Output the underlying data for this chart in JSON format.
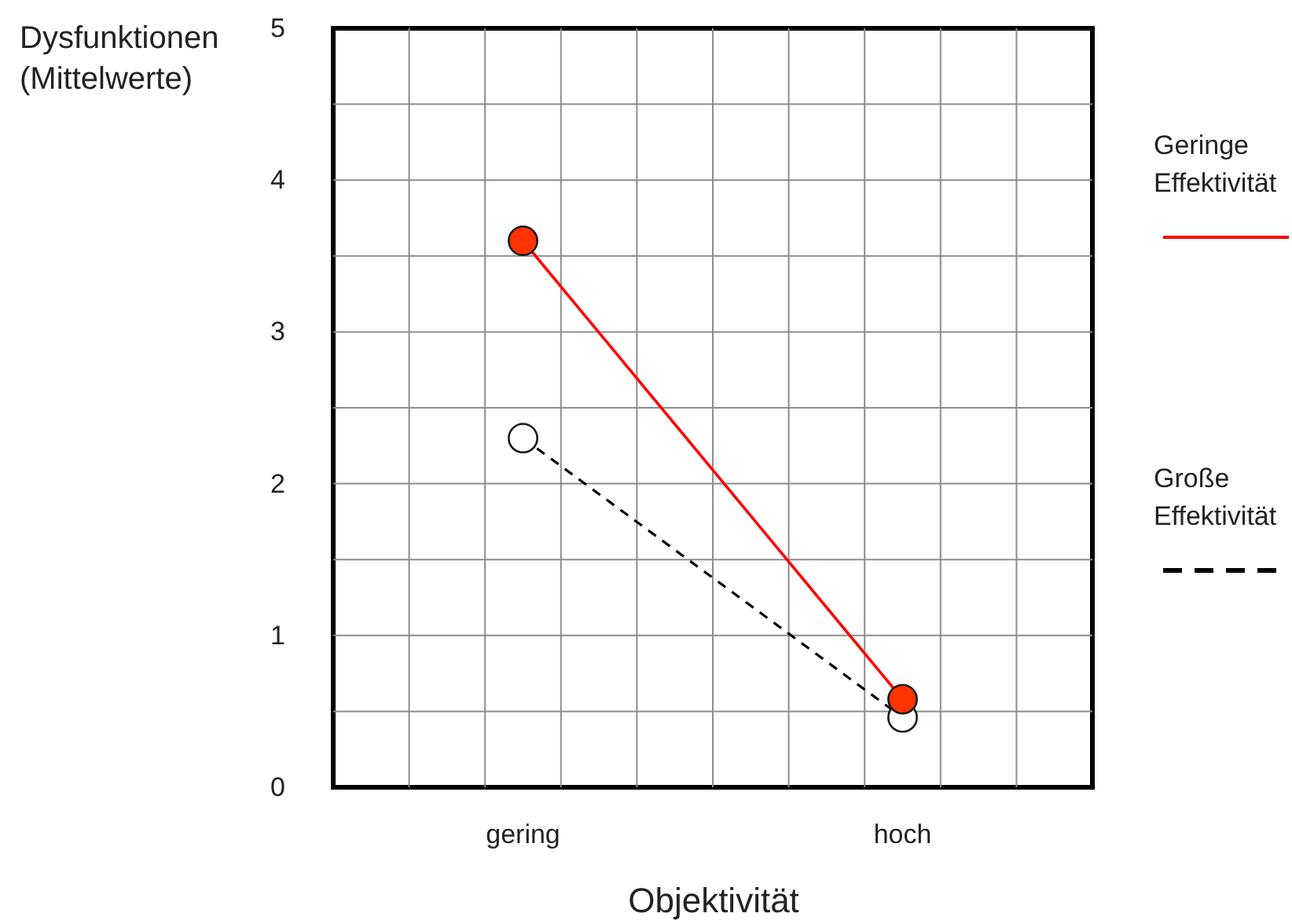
{
  "chart_data": {
    "type": "line",
    "xlabel": "Objektivität",
    "ylabel": "Dysfunktionen (Mittelwerte)",
    "categories": [
      null,
      null,
      "gering",
      null,
      null,
      null,
      null,
      "hoch",
      null,
      null
    ],
    "ylim": [
      0,
      5
    ],
    "yticks": [
      0,
      {
        "value": 0.5,
        "label": null
      },
      1,
      {
        "value": 1.5,
        "label": null
      },
      2,
      {
        "value": 2.5,
        "label": null
      },
      3,
      {
        "value": 3.5,
        "label": null
      },
      4,
      {
        "value": 4.5,
        "label": null
      },
      5
    ],
    "grid": true,
    "legend": "right",
    "marker": "circle",
    "series": [
      {
        "name": "Geringe Effektivität",
        "color": "#ff0000",
        "colors": [
          "#ff3300",
          "#ff3300"
        ],
        "line_style": "solid",
        "x": [
          "gering",
          "hoch"
        ],
        "values": [
          3.6,
          0.58
        ]
      },
      {
        "name": "Große Effektivität",
        "color": "#000000",
        "colors": [
          "#ffffff",
          "#ffffff"
        ],
        "line_style": "dashed",
        "x": [
          "gering",
          "hoch"
        ],
        "values": [
          2.3,
          0.46
        ]
      }
    ]
  }
}
